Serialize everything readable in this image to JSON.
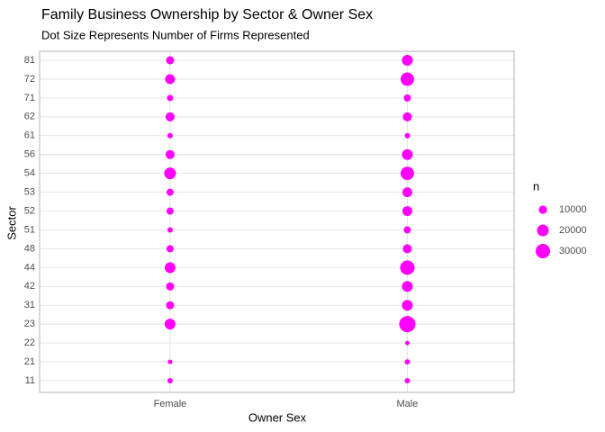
{
  "chart_data": {
    "type": "scatter",
    "title": "Family Business Ownership by Sector & Owner Sex",
    "subtitle": "Dot Size Represents Number of Firms Represented",
    "xlabel": "Owner Sex",
    "ylabel": "Sector",
    "categories": [
      "Female",
      "Male"
    ],
    "y_categories": [
      "11",
      "21",
      "22",
      "23",
      "31",
      "42",
      "44",
      "48",
      "51",
      "52",
      "53",
      "54",
      "56",
      "61",
      "62",
      "71",
      "72",
      "81"
    ],
    "values": [
      [
        4200,
        2900,
        null,
        16900,
        9500,
        9500,
        16900,
        7500,
        4200,
        7500,
        7500,
        19800,
        11700,
        4200,
        11700,
        5700,
        14000,
        9500
      ],
      [
        4200,
        4200,
        2900,
        38000,
        16900,
        16900,
        30000,
        11700,
        7500,
        14000,
        14000,
        26000,
        16900,
        4200,
        11700,
        7500,
        26000,
        16900
      ]
    ],
    "color": "#ff00ff",
    "grid": true,
    "legend": {
      "title": "n",
      "values": [
        10000,
        20000,
        30000
      ]
    }
  }
}
